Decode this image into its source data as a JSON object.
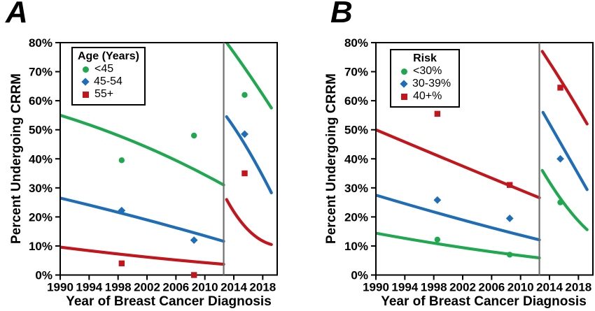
{
  "figure": {
    "colors": {
      "axis": "#000000",
      "divider": "#707070",
      "background": "#ffffff"
    }
  },
  "chart_data": [
    {
      "type": "scatter",
      "panel_label": "A",
      "xlabel": "Year of Breast Cancer Diagnosis",
      "ylabel": "Percent Undergoing CRRM",
      "xlim": [
        1990,
        2020
      ],
      "ylim": [
        0,
        80
      ],
      "xticks": [
        1990,
        1994,
        1998,
        2002,
        2006,
        2010,
        2014,
        2018
      ],
      "yticks": [
        0,
        10,
        20,
        30,
        40,
        50,
        60,
        70,
        80
      ],
      "ytick_suffix": "%",
      "grid": "off",
      "divider_x": 2012.6,
      "legend": {
        "title": "Age (Years)",
        "position": "top-left"
      },
      "series": [
        {
          "name": "<45",
          "color": "#1fa84f",
          "marker": "circle",
          "scatter": [
            [
              1998.5,
              39.5
            ],
            [
              2008.5,
              48.0
            ],
            [
              2015.5,
              62.0
            ]
          ],
          "trend_segments": [
            [
              [
                1990,
                55.0
              ],
              [
                2001.5,
                44.5
              ],
              [
                2012.6,
                31.0
              ]
            ],
            [
              [
                2013.0,
                80.0
              ],
              [
                2016.0,
                69.5
              ],
              [
                2019.2,
                57.5
              ]
            ]
          ]
        },
        {
          "name": "45-54",
          "color": "#1e6db6",
          "marker": "diamond",
          "scatter": [
            [
              1998.5,
              22.2
            ],
            [
              2008.5,
              12.0
            ],
            [
              2015.5,
              48.5
            ]
          ],
          "trend_segments": [
            [
              [
                1990,
                26.5
              ],
              [
                2001.5,
                19.3
              ],
              [
                2012.6,
                11.6
              ]
            ],
            [
              [
                2013.0,
                54.5
              ],
              [
                2016.0,
                43.0
              ],
              [
                2019.2,
                28.3
              ]
            ]
          ]
        },
        {
          "name": "55+",
          "color": "#c3161c",
          "marker": "square",
          "scatter": [
            [
              1998.5,
              4.0
            ],
            [
              2008.5,
              0.0
            ],
            [
              2015.5,
              35.0
            ]
          ],
          "trend_segments": [
            [
              [
                1990,
                9.6
              ],
              [
                2001.5,
                6.3
              ],
              [
                2012.6,
                3.7
              ]
            ],
            [
              [
                2013.0,
                26.0
              ],
              [
                2016.0,
                15.5
              ],
              [
                2019.2,
                10.5
              ]
            ]
          ]
        }
      ]
    },
    {
      "type": "scatter",
      "panel_label": "B",
      "xlabel": "Year of Breast Cancer Diagnosis",
      "ylabel": "Percent Undergoing CRRM",
      "xlim": [
        1990,
        2020
      ],
      "ylim": [
        0,
        80
      ],
      "xticks": [
        1990,
        1994,
        1998,
        2002,
        2006,
        2010,
        2014,
        2018
      ],
      "yticks": [
        0,
        10,
        20,
        30,
        40,
        50,
        60,
        70,
        80
      ],
      "ytick_suffix": "%",
      "grid": "off",
      "divider_x": 2012.6,
      "legend": {
        "title": "Risk",
        "position": "top-left"
      },
      "series": [
        {
          "name": "<30%",
          "color": "#1fa84f",
          "marker": "circle",
          "scatter": [
            [
              1998.5,
              12.2
            ],
            [
              2008.5,
              7.0
            ],
            [
              2015.5,
              25.0
            ]
          ],
          "trend_segments": [
            [
              [
                1990,
                14.4
              ],
              [
                2001.5,
                9.6
              ],
              [
                2012.6,
                5.9
              ]
            ],
            [
              [
                2013.0,
                36.0
              ],
              [
                2016.2,
                24.0
              ],
              [
                2019.2,
                15.6
              ]
            ]
          ]
        },
        {
          "name": "30-39%",
          "color": "#1e6db6",
          "marker": "diamond",
          "scatter": [
            [
              1998.5,
              25.8
            ],
            [
              2008.5,
              19.5
            ],
            [
              2015.5,
              40.0
            ]
          ],
          "trend_segments": [
            [
              [
                1990,
                27.5
              ],
              [
                2001.5,
                19.3
              ],
              [
                2012.6,
                12.1
              ]
            ],
            [
              [
                2013.1,
                56.0
              ],
              [
                2016.2,
                42.5
              ],
              [
                2019.2,
                29.4
              ]
            ]
          ]
        },
        {
          "name": "40+%",
          "color": "#c3161c",
          "marker": "square",
          "scatter": [
            [
              1998.5,
              55.5
            ],
            [
              2008.5,
              31.0
            ],
            [
              2015.5,
              64.5
            ]
          ],
          "trend_segments": [
            [
              [
                1990,
                50.0
              ],
              [
                2001.5,
                38.0
              ],
              [
                2012.6,
                26.6
              ]
            ],
            [
              [
                2013.0,
                77.0
              ],
              [
                2016.2,
                64.5
              ],
              [
                2019.2,
                52.0
              ]
            ]
          ]
        }
      ]
    }
  ]
}
